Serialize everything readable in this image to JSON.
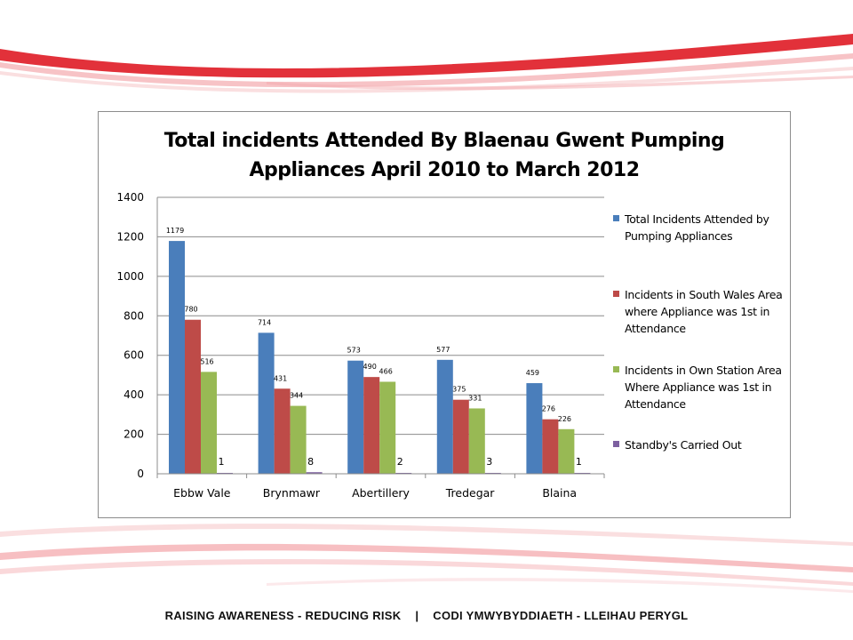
{
  "footer": {
    "left": "RAISING AWARENESS - REDUCING RISK",
    "separator": "|",
    "right": "CODI YMWYBYDDIAETH - LLEIHAU PERYGL"
  },
  "colors": {
    "brand_red": "#e0262f",
    "brand_pink": "#f4a9ae"
  },
  "chart_data": {
    "type": "bar",
    "title_line1": "Total incidents Attended By Blaenau Gwent Pumping",
    "title_line2": "Appliances April 2010 to March 2012",
    "categories": [
      "Ebbw Vale",
      "Brynmawr",
      "Abertillery",
      "Tredegar",
      "Blaina"
    ],
    "ylim": [
      0,
      1400
    ],
    "yticks": [
      0,
      200,
      400,
      600,
      800,
      1000,
      1200,
      1400
    ],
    "grid": true,
    "legend_position": "right",
    "series": [
      {
        "name_line1": "Total Incidents Attended by",
        "name_line2": "Pumping Appliances",
        "name_line3": "",
        "color": "#4a7ebb",
        "values": [
          1179,
          714,
          573,
          577,
          459
        ]
      },
      {
        "name_line1": "Incidents in South Wales Area",
        "name_line2": "where Appliance was 1st in",
        "name_line3": "Attendance",
        "color": "#be4b48",
        "values": [
          780,
          431,
          490,
          375,
          276
        ]
      },
      {
        "name_line1": "Incidents in Own Station Area",
        "name_line2": "Where Appliance was 1st in",
        "name_line3": "Attendance",
        "color": "#98b954",
        "values": [
          516,
          344,
          466,
          331,
          226
        ]
      },
      {
        "name_line1": "Standby's Carried Out",
        "name_line2": "",
        "name_line3": "",
        "color": "#7d60a0",
        "values": [
          1,
          8,
          2,
          3,
          1
        ]
      }
    ]
  }
}
